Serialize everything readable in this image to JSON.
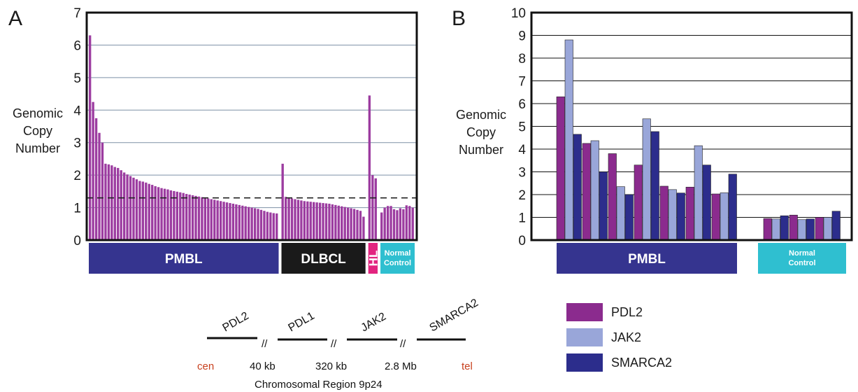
{
  "panel_a": {
    "letter": "A",
    "ylabel_lines": [
      "Genomic",
      "Copy",
      "Number"
    ]
  },
  "panel_b": {
    "letter": "B",
    "ylabel_lines": [
      "Genomic",
      "Copy",
      "Number"
    ]
  },
  "colors": {
    "pdl2": "#8b2b8e",
    "jak2": "#99a6d9",
    "smarca2": "#2c2d8c",
    "panel_a_bar": "#9c3ca0",
    "pmbl": "#35348f",
    "dlbcl": "#1a1a1a",
    "hl": "#e2247f",
    "normal": "#2fbfd0",
    "chrom_end": "#c8401e"
  },
  "chart_data": [
    {
      "type": "bar",
      "panel": "A",
      "ylim": [
        0,
        7
      ],
      "yticks": [
        0,
        1,
        2,
        3,
        4,
        5,
        6,
        7
      ],
      "threshold": 1.3,
      "grid": true,
      "groups": [
        {
          "label": "PMBL",
          "values": [
            6.3,
            4.25,
            3.75,
            3.3,
            3.0,
            2.35,
            2.33,
            2.3,
            2.25,
            2.22,
            2.15,
            2.08,
            2.02,
            1.97,
            1.92,
            1.87,
            1.82,
            1.8,
            1.77,
            1.73,
            1.7,
            1.66,
            1.63,
            1.6,
            1.58,
            1.56,
            1.53,
            1.51,
            1.49,
            1.47,
            1.45,
            1.42,
            1.4,
            1.38,
            1.36,
            1.34,
            1.32,
            1.3,
            1.28,
            1.26,
            1.24,
            1.22,
            1.2,
            1.18,
            1.16,
            1.14,
            1.12,
            1.1,
            1.08,
            1.06,
            1.04,
            1.02,
            1.0,
            0.98,
            0.96,
            0.93,
            0.9,
            0.87,
            0.85,
            0.83,
            0.82
          ]
        },
        {
          "label": "DLBCL",
          "values": [
            2.35,
            1.33,
            1.3,
            1.28,
            1.26,
            1.24,
            1.22,
            1.2,
            1.19,
            1.18,
            1.17,
            1.16,
            1.15,
            1.14,
            1.13,
            1.12,
            1.1,
            1.08,
            1.06,
            1.04,
            1.02,
            1.0,
            0.98,
            0.96,
            0.93,
            0.9,
            0.72
          ]
        },
        {
          "label": "HL",
          "values": [
            4.45,
            2.0,
            1.9
          ]
        },
        {
          "label_lines": [
            "Normal",
            "Control"
          ],
          "values": [
            0.85,
            1.0,
            1.05,
            1.05,
            0.95,
            0.92,
            0.98,
            0.95,
            1.07,
            1.05,
            1.0
          ]
        }
      ]
    },
    {
      "type": "bar",
      "panel": "B",
      "ylim": [
        0,
        10
      ],
      "yticks": [
        0,
        1,
        2,
        3,
        4,
        5,
        6,
        7,
        8,
        9,
        10
      ],
      "grid": true,
      "series": [
        {
          "name": "PDL2",
          "values": [
            6.3,
            4.25,
            3.8,
            3.3,
            2.37,
            2.33,
            2.03,
            0.95,
            1.1,
            1.0
          ]
        },
        {
          "name": "JAK2",
          "values": [
            8.8,
            4.37,
            2.35,
            5.33,
            2.22,
            4.15,
            2.08,
            0.93,
            0.9,
            1.0
          ]
        },
        {
          "name": "SMARCA2",
          "values": [
            4.65,
            3.0,
            2.0,
            4.77,
            2.07,
            3.3,
            2.9,
            1.07,
            0.93,
            1.27
          ]
        }
      ],
      "groups": [
        {
          "label": "PMBL",
          "samples": 7
        },
        {
          "label_lines": [
            "Normal",
            "Control"
          ],
          "samples": 3
        }
      ]
    }
  ],
  "diagram": {
    "genes": [
      "PDL2",
      "PDL1",
      "JAK2",
      "SMARCA2"
    ],
    "break_mark": "//",
    "distances": [
      "40 kb",
      "320 kb",
      "2.8 Mb"
    ],
    "cen": "cen",
    "tel": "tel",
    "caption": "Chromosomal Region 9p24"
  }
}
